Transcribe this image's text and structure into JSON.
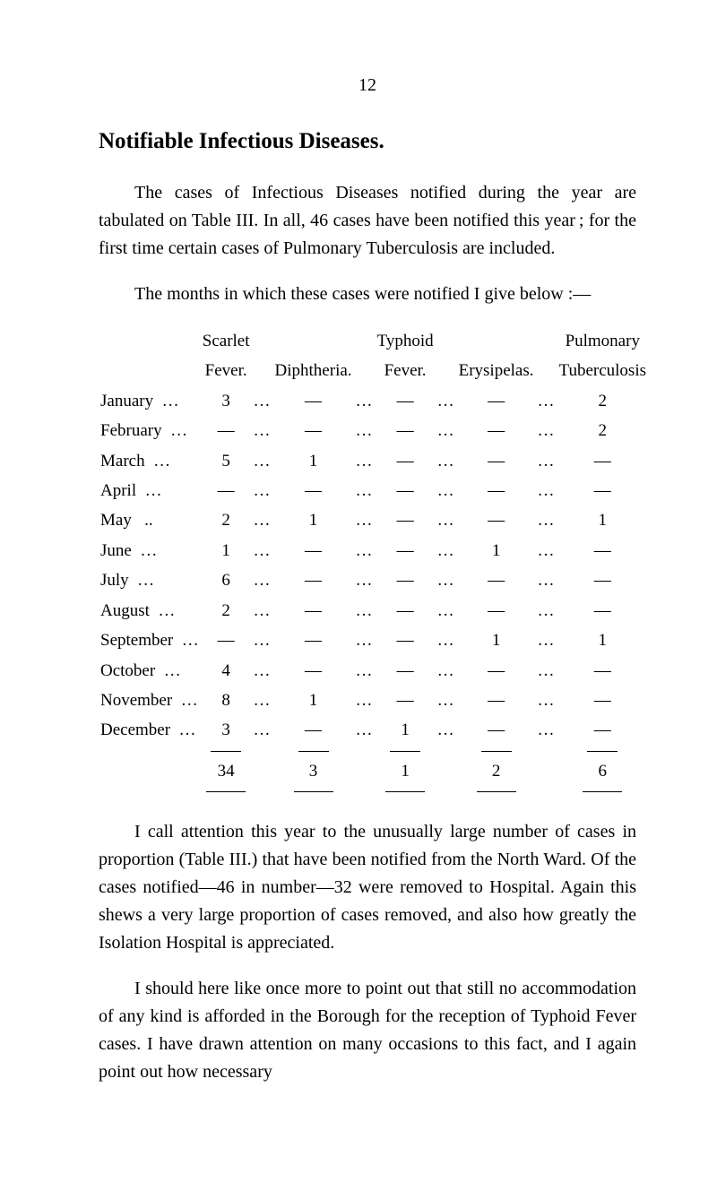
{
  "page_number": "12",
  "heading": "Notifiable Infectious Diseases.",
  "para1": "The cases of Infectious Diseases notified during the year are tabulated on Table III.  In all, 46 cases have been notified this year ; for the first time certain cases of Pulmonary Tuberculosis are included.",
  "para2": "The months in which these cases were notified I give below :—",
  "table": {
    "headers_top": [
      "",
      "Scarlet",
      "",
      "",
      "",
      "Typhoid",
      "",
      "",
      "",
      "Pulmonary"
    ],
    "headers_bot": [
      "",
      "Fever.",
      "",
      "Diphtheria.",
      "",
      "Fever.",
      "",
      "Erysipelas.",
      "",
      "Tuberculosis"
    ],
    "rows": [
      {
        "m": "January",
        "sf": "3",
        "dp": "—",
        "ty": "—",
        "er": "—",
        "tb": "2"
      },
      {
        "m": "February",
        "sf": "—",
        "dp": "—",
        "ty": "—",
        "er": "—",
        "tb": "2"
      },
      {
        "m": "March",
        "sf": "5",
        "dp": "1",
        "ty": "—",
        "er": "—",
        "tb": "—"
      },
      {
        "m": "April",
        "sf": "—",
        "dp": "—",
        "ty": "—",
        "er": "—",
        "tb": "—"
      },
      {
        "m": "May",
        "sf": "2",
        "dp": "1",
        "ty": "—",
        "er": "—",
        "tb": "1"
      },
      {
        "m": "June",
        "sf": "1",
        "dp": "—",
        "ty": "—",
        "er": "1",
        "tb": "—"
      },
      {
        "m": "July",
        "sf": "6",
        "dp": "—",
        "ty": "—",
        "er": "—",
        "tb": "—"
      },
      {
        "m": "August",
        "sf": "2",
        "dp": "—",
        "ty": "—",
        "er": "—",
        "tb": "—"
      },
      {
        "m": "September",
        "sf": "—",
        "dp": "—",
        "ty": "—",
        "er": "1",
        "tb": "1"
      },
      {
        "m": "October",
        "sf": "4",
        "dp": "—",
        "ty": "—",
        "er": "—",
        "tb": "—"
      },
      {
        "m": "November",
        "sf": "8",
        "dp": "1",
        "ty": "—",
        "er": "—",
        "tb": "—"
      },
      {
        "m": "December",
        "sf": "3",
        "dp": "—",
        "ty": "1",
        "er": "—",
        "tb": "—"
      }
    ],
    "totals": {
      "sf": "34",
      "dp": "3",
      "ty": "1",
      "er": "2",
      "tb": "6"
    }
  },
  "para3": "I call attention this year to the unusually large number of cases in proportion (Table III.) that have been notified from the North Ward.  Of the cases notified—46 in number—32 were removed to Hospital.  Again this shews a very large proportion of cases removed, and also how greatly the Isolation Hospital is appreciated.",
  "para4": "I should here like once more to point out that still no accommodation of any kind is afforded in the Borough for the reception of Typhoid Fever cases.  I have drawn attention on many occasions to this fact, and I again point out how necessary",
  "dots": "…",
  "dash": "—"
}
